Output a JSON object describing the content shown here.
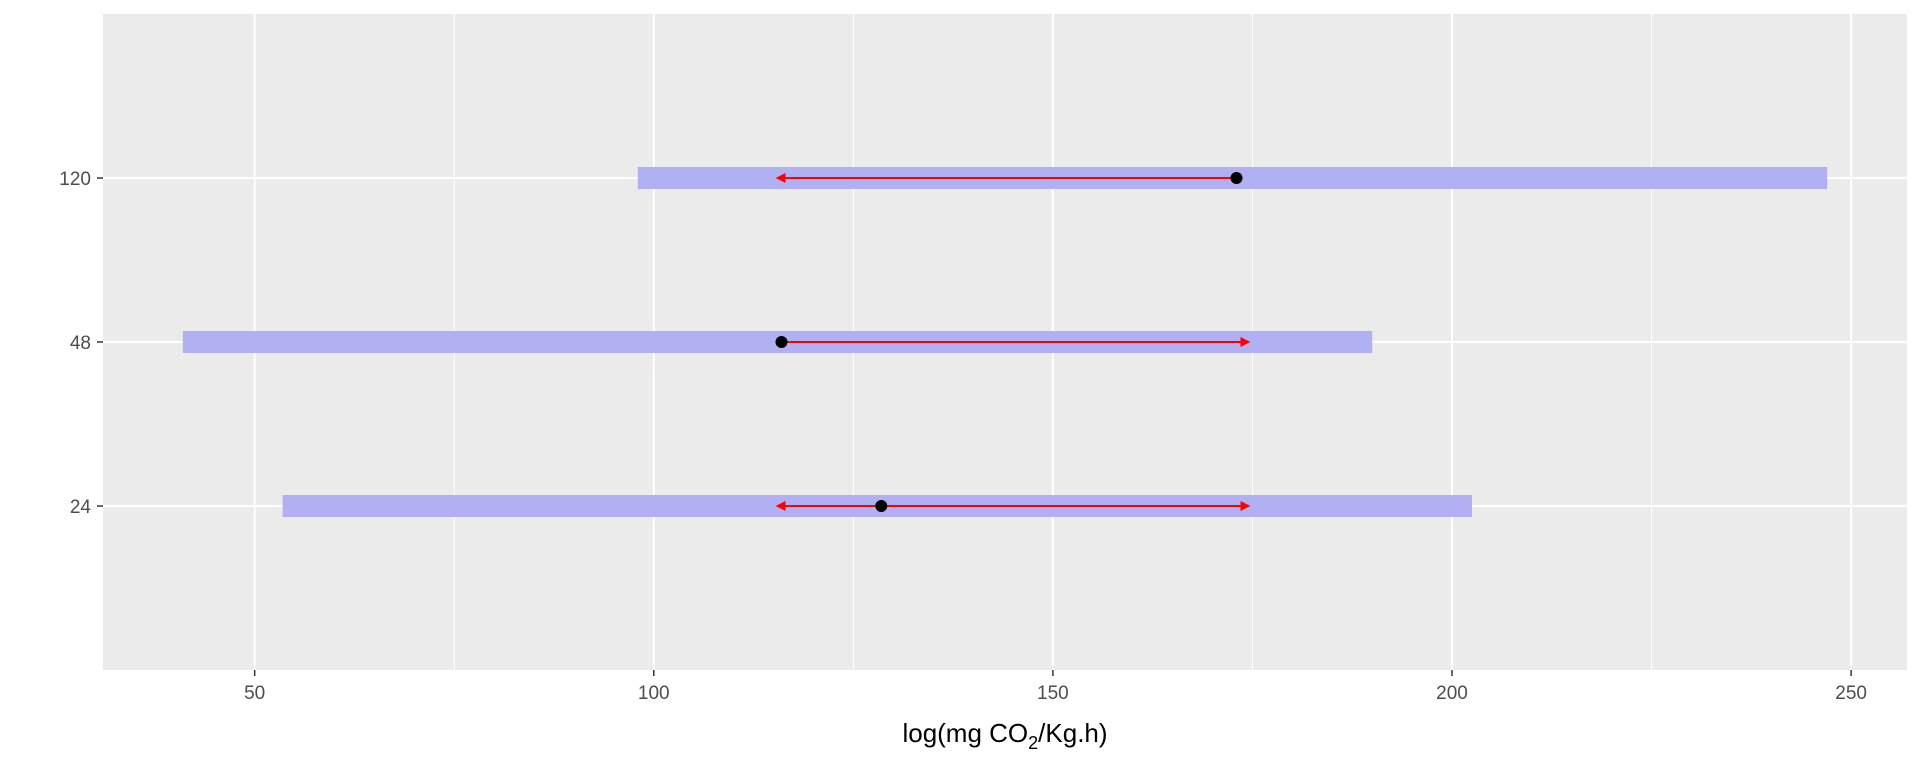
{
  "chart_data": {
    "type": "interval-arrow",
    "categories": [
      "24",
      "48",
      "120"
    ],
    "xlim": [
      31,
      257
    ],
    "x_ticks": [
      50,
      100,
      150,
      200,
      250
    ],
    "x_tick_labels": [
      "50",
      "100",
      "150",
      "200",
      "250"
    ],
    "xlabel": {
      "prefix": "log(mg CO",
      "subscript": "2",
      "suffix": "/Kg.h)"
    },
    "ylabel": "",
    "grid": true,
    "intervals": [
      {
        "category": "24",
        "low": 53.5,
        "high": 202.5
      },
      {
        "category": "48",
        "low": 41,
        "high": 190
      },
      {
        "category": "120",
        "low": 98,
        "high": 247
      }
    ],
    "points": [
      {
        "category": "24",
        "value": 128.5
      },
      {
        "category": "48",
        "value": 116
      },
      {
        "category": "120",
        "value": 173
      }
    ],
    "arrows": [
      {
        "category": "24",
        "from": 128.5,
        "to": 115.5
      },
      {
        "category": "24",
        "from": 128.5,
        "to": 174.5
      },
      {
        "category": "48",
        "from": 116,
        "to": 174.5
      },
      {
        "category": "120",
        "from": 173,
        "to": 115.5
      }
    ],
    "colors": {
      "panel_background": "#ebebeb",
      "grid": "#ffffff",
      "interval": "#b0b0f2",
      "arrow": "#ff0000",
      "point": "#000000"
    }
  }
}
